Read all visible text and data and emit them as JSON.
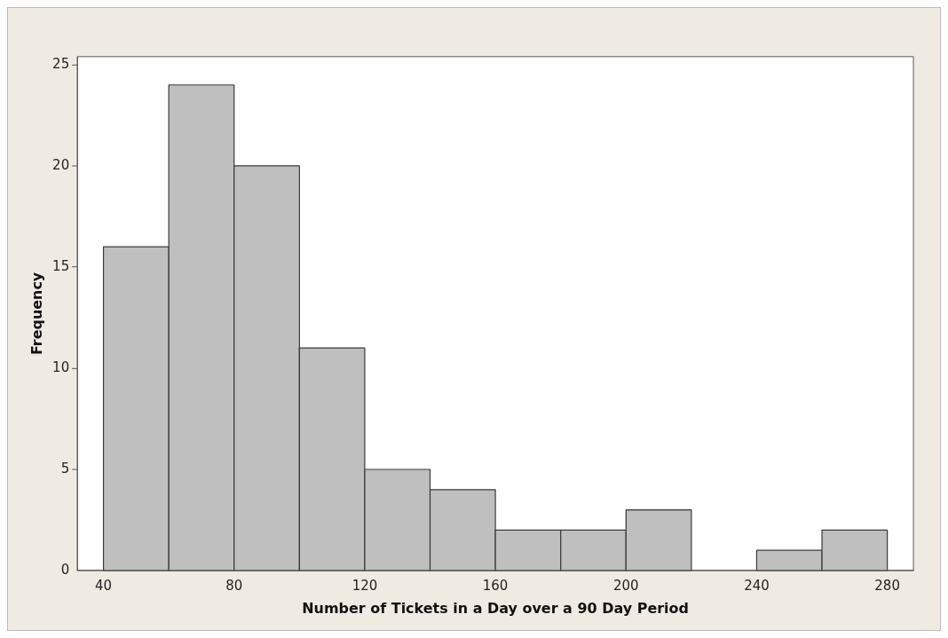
{
  "chart_data": {
    "type": "histogram",
    "xlabel": "Number of Tickets in a Day over a 90 Day Period",
    "ylabel": "Frequency",
    "bins": [
      40,
      60,
      80,
      100,
      120,
      140,
      160,
      180,
      200,
      220,
      240,
      260,
      280
    ],
    "values": [
      16,
      24,
      20,
      11,
      5,
      4,
      2,
      2,
      3,
      0,
      1,
      2
    ],
    "color": "#bfbfbf",
    "xlim": [
      32,
      288
    ],
    "ylim": [
      0,
      25.4
    ],
    "xticks": [
      40,
      80,
      120,
      160,
      200,
      240,
      280
    ],
    "yticks": [
      0,
      5,
      10,
      15,
      20,
      25
    ]
  }
}
